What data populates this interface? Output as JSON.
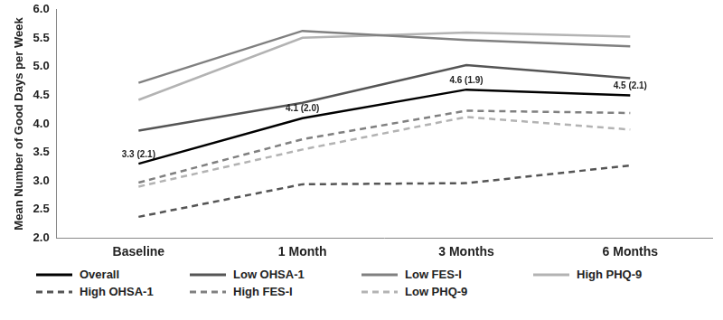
{
  "chart_data": {
    "type": "line",
    "y_label": "Mean Number of Good Days per Week",
    "categories": [
      "Baseline",
      "1 Month",
      "3 Months",
      "6 Months"
    ],
    "ylim": [
      2.0,
      6.0
    ],
    "yticks": [
      {
        "value": 2,
        "label": "2.0"
      },
      2.5,
      {
        "value": 3,
        "label": "3.0"
      },
      3.5,
      {
        "value": 4,
        "label": "4.0"
      },
      4.5,
      {
        "value": 5,
        "label": "5.0"
      },
      5.5,
      {
        "value": 6,
        "label": "6.0"
      }
    ],
    "grid": false,
    "legend": "bottom",
    "series": [
      {
        "name": "Overall",
        "color": "#000000",
        "line_style": "solid",
        "values": [
          3.3,
          4.1,
          4.6,
          4.5
        ],
        "data_labels": true,
        "value_labels": [
          "3.3 (2.1)",
          "4.1 (2.0)",
          "4.6 (1.9)",
          "4.5 (2.1)"
        ]
      },
      {
        "name": "Low OHSA-1",
        "color": "#555555",
        "line_style": "solid",
        "values": [
          3.88,
          4.37,
          5.03,
          4.8
        ]
      },
      {
        "name": "Low FES-I",
        "color": "#808080",
        "line_style": "solid",
        "values": [
          4.72,
          5.63,
          5.47,
          5.36
        ]
      },
      {
        "name": "High PHQ-9",
        "color": "#b3b3b3",
        "line_style": "solid",
        "values": [
          4.42,
          5.51,
          5.6,
          5.53
        ]
      },
      {
        "name": "High OHSA-1",
        "color": "#555555",
        "line_style": "dashed",
        "values": [
          2.37,
          2.94,
          2.96,
          3.27
        ]
      },
      {
        "name": "High FES-I",
        "color": "#808080",
        "line_style": "dashed",
        "values": [
          2.97,
          3.73,
          4.23,
          4.19
        ]
      },
      {
        "name": "Low PHQ-9",
        "color": "#b3b3b3",
        "line_style": "dashed",
        "values": [
          2.9,
          3.55,
          4.12,
          3.9
        ]
      }
    ]
  }
}
